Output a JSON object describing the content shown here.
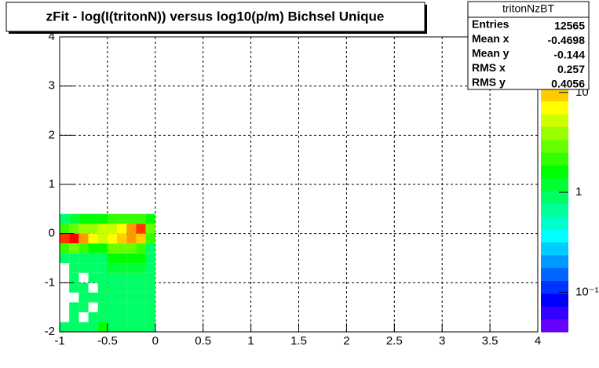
{
  "chart_data": {
    "type": "heatmap",
    "title": "zFit - log(I(tritonN)) versus log10(p/m) Bichsel Unique",
    "xlim": [
      -1,
      4
    ],
    "xticks": [
      -1,
      -0.5,
      0,
      0.5,
      1,
      1.5,
      2,
      2.5,
      3,
      3.5,
      4
    ],
    "ylim": [
      -2,
      4
    ],
    "yticks": [
      -2,
      -1,
      0,
      1,
      2,
      3,
      4
    ],
    "grid": true,
    "xbins": [
      -1,
      -0.9,
      -0.8,
      -0.7,
      -0.6,
      -0.5,
      -0.4,
      -0.3,
      -0.2,
      -0.1,
      0
    ],
    "ybins": [
      -2,
      -1.8,
      -1.6,
      -1.4,
      -1.2,
      -1,
      -0.8,
      -0.6,
      -0.4,
      -0.2,
      0,
      0.2,
      0.4
    ],
    "z": [
      [
        1,
        1,
        1,
        1,
        1.5,
        1,
        1,
        1,
        1,
        1
      ],
      [
        null,
        1,
        null,
        1,
        1,
        1,
        1,
        1,
        1,
        1
      ],
      [
        null,
        1,
        1,
        null,
        1,
        1,
        1,
        1,
        1,
        1
      ],
      [
        null,
        null,
        1,
        1,
        1,
        1,
        1,
        1,
        1,
        1
      ],
      [
        null,
        1,
        1,
        null,
        1,
        1,
        1,
        1,
        1,
        1
      ],
      [
        null,
        1,
        null,
        1,
        1,
        1,
        1,
        1,
        1,
        1
      ],
      [
        null,
        1,
        1,
        1,
        1,
        1.2,
        1.2,
        1.2,
        1.2,
        1
      ],
      [
        1,
        1,
        1,
        1,
        1,
        1.5,
        1.5,
        1.5,
        1.5,
        1
      ],
      [
        2,
        3,
        2,
        1.5,
        1.5,
        3,
        3,
        3,
        2,
        1
      ],
      [
        20,
        30,
        12,
        8,
        6,
        8,
        10,
        14,
        10,
        2
      ],
      [
        2,
        3,
        4,
        4,
        5,
        6,
        8,
        12,
        25,
        3
      ],
      [
        1,
        1.2,
        1.5,
        1.5,
        1.5,
        2,
        2,
        2,
        2,
        1.5
      ]
    ],
    "zlim": [
      0.04,
      36
    ],
    "zlog": true,
    "zticks": [
      {
        "value": 0.1,
        "label": "10⁻¹"
      },
      1,
      10
    ],
    "palette": [
      "#6600ff",
      "#3300ff",
      "#0000ff",
      "#0033ff",
      "#0066ff",
      "#0099ff",
      "#00ccff",
      "#00ffff",
      "#00ffcc",
      "#00ff99",
      "#00ff66",
      "#00ff33",
      "#00ff00",
      "#33ff00",
      "#66ff00",
      "#99ff00",
      "#ccff00",
      "#ffff00",
      "#ffcc00",
      "#ff9900",
      "#ff6600",
      "#ff3300",
      "#ff0000"
    ],
    "stats": {
      "title": "tritonNzBT",
      "rows": [
        {
          "label": "Entries",
          "value": 12565
        },
        {
          "label": "Mean x",
          "value": -0.4698
        },
        {
          "label": "Mean y",
          "value": -0.144
        },
        {
          "label": "RMS x",
          "value": 0.257
        },
        {
          "label": "RMS y",
          "value": 0.4056
        }
      ]
    }
  }
}
